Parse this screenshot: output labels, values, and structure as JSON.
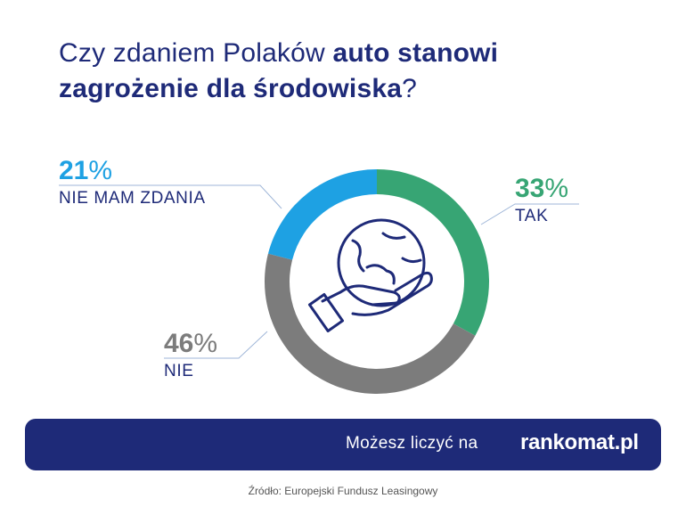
{
  "title": {
    "part1": "Czy zdaniem Polaków ",
    "bold1": "auto stanowi",
    "bold2": "zagrożenie dla środowiska",
    "part2": "?"
  },
  "chart_data": {
    "type": "pie",
    "title": "Czy zdaniem Polaków auto stanowi zagrożenie dla środowiska?",
    "categories": [
      "TAK",
      "NIE",
      "NIE MAM ZDANIA"
    ],
    "values": [
      33,
      46,
      21
    ],
    "unit": "%",
    "colors": [
      "#37a574",
      "#7c7c7c",
      "#1ea1e3"
    ]
  },
  "labels": {
    "tak": {
      "num": "33",
      "sign": "%",
      "name": "TAK"
    },
    "nie": {
      "num": "46",
      "sign": "%",
      "name": "NIE"
    },
    "nmz": {
      "num": "21",
      "sign": "%",
      "name": "NIE MAM ZDANIA"
    }
  },
  "footer": {
    "text": "Możesz liczyć na",
    "brand": "rankomat.pl"
  },
  "source": "Źródło: Europejski Fundusz Leasingowy",
  "icon": "globe-in-hand-icon",
  "colors": {
    "navy": "#1e2a78"
  }
}
